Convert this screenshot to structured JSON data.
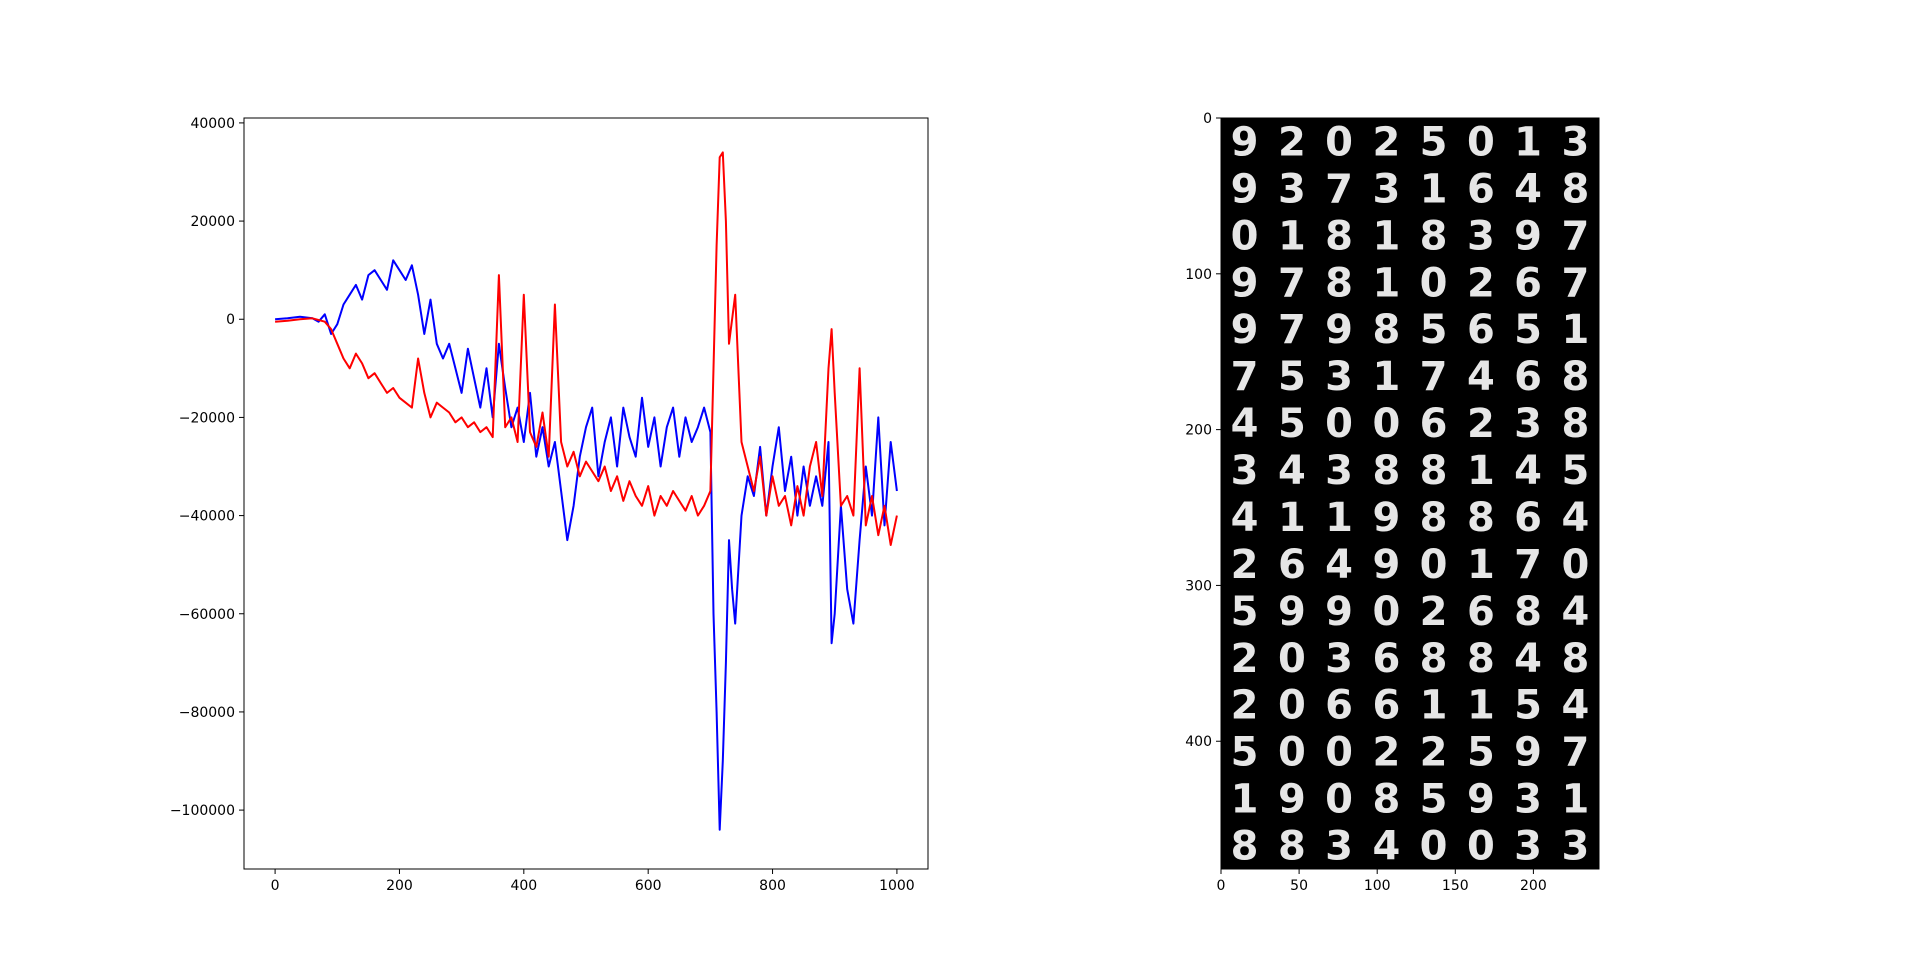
{
  "chart_data": [
    {
      "type": "line",
      "title": "",
      "xlabel": "",
      "ylabel": "",
      "xlim": [
        -50,
        1050
      ],
      "ylim": [
        -112000,
        41000
      ],
      "xticks": [
        0,
        200,
        400,
        600,
        800,
        1000
      ],
      "yticks": [
        40000,
        20000,
        0,
        -20000,
        -40000,
        -60000,
        -80000,
        -100000
      ],
      "ytick_labels": [
        "40000",
        "20000",
        "0",
        "−20000",
        "−40000",
        "−60000",
        "−80000",
        "−100000"
      ],
      "grid": false,
      "legend": "none",
      "series": [
        {
          "color": "#0000ff",
          "x": [
            0,
            20,
            40,
            60,
            70,
            80,
            90,
            100,
            110,
            120,
            130,
            140,
            150,
            160,
            170,
            180,
            190,
            200,
            210,
            220,
            230,
            240,
            250,
            260,
            270,
            280,
            290,
            300,
            310,
            320,
            330,
            340,
            350,
            360,
            370,
            380,
            390,
            400,
            410,
            420,
            430,
            440,
            450,
            460,
            470,
            480,
            490,
            500,
            510,
            520,
            530,
            540,
            550,
            560,
            570,
            580,
            590,
            600,
            610,
            620,
            630,
            640,
            650,
            660,
            670,
            680,
            690,
            700,
            705,
            710,
            715,
            720,
            725,
            730,
            735,
            740,
            750,
            760,
            770,
            780,
            790,
            800,
            810,
            820,
            830,
            840,
            850,
            860,
            870,
            880,
            890,
            895,
            900,
            910,
            920,
            930,
            940,
            950,
            960,
            970,
            980,
            990,
            1000
          ],
          "y": [
            0,
            200,
            500,
            200,
            -500,
            1000,
            -3000,
            -1000,
            3000,
            5000,
            7000,
            4000,
            9000,
            10000,
            8000,
            6000,
            12000,
            10000,
            8000,
            11000,
            5000,
            -3000,
            4000,
            -5000,
            -8000,
            -5000,
            -10000,
            -15000,
            -6000,
            -12000,
            -18000,
            -10000,
            -20000,
            -5000,
            -14000,
            -22000,
            -18000,
            -25000,
            -15000,
            -28000,
            -22000,
            -30000,
            -25000,
            -35000,
            -45000,
            -38000,
            -28000,
            -22000,
            -18000,
            -32000,
            -25000,
            -20000,
            -30000,
            -18000,
            -24000,
            -28000,
            -16000,
            -26000,
            -20000,
            -30000,
            -22000,
            -18000,
            -28000,
            -20000,
            -25000,
            -22000,
            -18000,
            -23000,
            -60000,
            -80000,
            -104000,
            -90000,
            -70000,
            -45000,
            -55000,
            -62000,
            -40000,
            -32000,
            -36000,
            -26000,
            -40000,
            -30000,
            -22000,
            -35000,
            -28000,
            -40000,
            -30000,
            -38000,
            -32000,
            -38000,
            -25000,
            -66000,
            -60000,
            -38000,
            -55000,
            -62000,
            -45000,
            -30000,
            -40000,
            -20000,
            -42000,
            -25000,
            -35000
          ]
        },
        {
          "color": "#ff0000",
          "x": [
            0,
            20,
            40,
            60,
            80,
            90,
            100,
            110,
            120,
            130,
            140,
            150,
            160,
            170,
            180,
            190,
            200,
            210,
            220,
            230,
            240,
            250,
            260,
            270,
            280,
            290,
            300,
            310,
            320,
            330,
            340,
            350,
            360,
            370,
            380,
            390,
            400,
            410,
            420,
            430,
            440,
            450,
            460,
            470,
            480,
            490,
            500,
            510,
            520,
            530,
            540,
            550,
            560,
            570,
            580,
            590,
            600,
            610,
            620,
            630,
            640,
            650,
            660,
            670,
            680,
            690,
            700,
            705,
            710,
            715,
            720,
            725,
            730,
            740,
            750,
            760,
            770,
            780,
            790,
            800,
            810,
            820,
            830,
            840,
            850,
            860,
            870,
            880,
            890,
            895,
            900,
            910,
            920,
            930,
            940,
            950,
            960,
            970,
            980,
            990,
            1000
          ],
          "y": [
            -500,
            -300,
            0,
            200,
            -500,
            -2000,
            -5000,
            -8000,
            -10000,
            -7000,
            -9000,
            -12000,
            -11000,
            -13000,
            -15000,
            -14000,
            -16000,
            -17000,
            -18000,
            -8000,
            -15000,
            -20000,
            -17000,
            -18000,
            -19000,
            -21000,
            -20000,
            -22000,
            -21000,
            -23000,
            -22000,
            -24000,
            9000,
            -22000,
            -20000,
            -25000,
            5000,
            -23000,
            -26000,
            -19000,
            -28000,
            3000,
            -25000,
            -30000,
            -27000,
            -32000,
            -29000,
            -31000,
            -33000,
            -30000,
            -35000,
            -32000,
            -37000,
            -33000,
            -36000,
            -38000,
            -34000,
            -40000,
            -36000,
            -38000,
            -35000,
            -37000,
            -39000,
            -36000,
            -40000,
            -38000,
            -35000,
            -10000,
            15000,
            33000,
            34000,
            20000,
            -5000,
            5000,
            -25000,
            -30000,
            -35000,
            -28000,
            -40000,
            -32000,
            -38000,
            -36000,
            -42000,
            -34000,
            -40000,
            -30000,
            -25000,
            -36000,
            -10000,
            -2000,
            -15000,
            -38000,
            -36000,
            -40000,
            -10000,
            -42000,
            -36000,
            -44000,
            -38000,
            -46000,
            -40000
          ]
        }
      ]
    },
    {
      "type": "heatmap",
      "title": "",
      "xlabel": "",
      "ylabel": "",
      "xlim": [
        0,
        242
      ],
      "ylim": [
        482,
        0
      ],
      "xticks": [
        0,
        50,
        100,
        150,
        200
      ],
      "yticks": [
        0,
        100,
        200,
        300,
        400
      ],
      "grid": false,
      "legend": "none",
      "colormap": "gray",
      "grid_rows": 16,
      "grid_cols": 8,
      "digits": [
        [
          "9",
          "2",
          "0",
          "2",
          "5",
          "0",
          "1",
          "3"
        ],
        [
          "9",
          "3",
          "7",
          "3",
          "1",
          "6",
          "4",
          "8"
        ],
        [
          "0",
          "1",
          "8",
          "1",
          "8",
          "3",
          "9",
          "7"
        ],
        [
          "9",
          "7",
          "8",
          "1",
          "0",
          "2",
          "6",
          "7"
        ],
        [
          "9",
          "7",
          "9",
          "8",
          "5",
          "6",
          "5",
          "1"
        ],
        [
          "7",
          "5",
          "3",
          "1",
          "7",
          "4",
          "6",
          "8"
        ],
        [
          "4",
          "5",
          "0",
          "0",
          "6",
          "2",
          "3",
          "8"
        ],
        [
          "3",
          "4",
          "3",
          "8",
          "8",
          "1",
          "4",
          "5"
        ],
        [
          "4",
          "1",
          "1",
          "9",
          "8",
          "8",
          "6",
          "4"
        ],
        [
          "2",
          "6",
          "4",
          "9",
          "0",
          "1",
          "7",
          "0"
        ],
        [
          "5",
          "9",
          "9",
          "0",
          "2",
          "6",
          "8",
          "4"
        ],
        [
          "2",
          "0",
          "3",
          "6",
          "8",
          "8",
          "4",
          "8"
        ],
        [
          "2",
          "0",
          "6",
          "6",
          "1",
          "1",
          "5",
          "4"
        ],
        [
          "5",
          "0",
          "0",
          "2",
          "2",
          "5",
          "9",
          "7"
        ],
        [
          "1",
          "9",
          "0",
          "8",
          "5",
          "9",
          "3",
          "1"
        ],
        [
          "8",
          "8",
          "3",
          "4",
          "0",
          "0",
          "3",
          "3"
        ]
      ]
    }
  ]
}
